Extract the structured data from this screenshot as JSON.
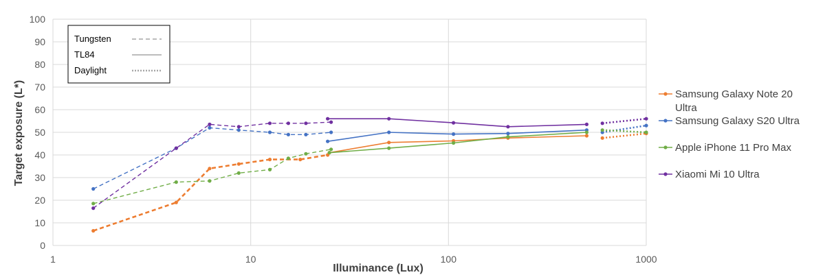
{
  "chart_data": {
    "type": "line",
    "title": "",
    "xlabel": "Illuminance (Lux)",
    "ylabel": "Target exposure (L*)",
    "xscale": "log",
    "xlim": [
      1,
      1000
    ],
    "ylim": [
      0,
      100
    ],
    "xticks": [
      "1",
      "10",
      "100",
      "1000"
    ],
    "yticks": [
      "0",
      "10",
      "20",
      "30",
      "40",
      "50",
      "60",
      "70",
      "80",
      "90",
      "100"
    ],
    "grid": true,
    "line_style_legend": {
      "placement": "top-left",
      "entries": [
        {
          "label": "Tungsten",
          "style": "dashed"
        },
        {
          "label": "TL84",
          "style": "solid"
        },
        {
          "label": "Daylight",
          "style": "dotted"
        }
      ]
    },
    "legend_placement": "right",
    "series": [
      {
        "name": "Samsung Galaxy Note 20 Ultra",
        "color": "#ED7D31",
        "tungsten": {
          "x": [
            1.6,
            4.2,
            6.2,
            8.7,
            12.5,
            17.8,
            24.5
          ],
          "y": [
            6.5,
            19,
            34,
            36,
            38,
            38,
            40
          ]
        },
        "tl84": {
          "x": [
            25,
            50,
            106,
            200,
            500
          ],
          "y": [
            41,
            45.5,
            46.2,
            47.5,
            48.5
          ]
        },
        "daylight": {
          "x": [
            600,
            1000
          ],
          "y": [
            47.5,
            49.5
          ]
        }
      },
      {
        "name": "Samsung Galaxy S20 Ultra",
        "color": "#4472C4",
        "tungsten": {
          "x": [
            1.6,
            4.2,
            6.2,
            8.7,
            12.5,
            15.5,
            19,
            25.5
          ],
          "y": [
            25,
            43,
            52,
            51,
            50,
            49,
            49,
            50
          ]
        },
        "tl84": {
          "x": [
            24.5,
            50,
            106,
            200,
            500
          ],
          "y": [
            46,
            50,
            49.2,
            49.5,
            51
          ]
        },
        "daylight": {
          "x": [
            600,
            1000
          ],
          "y": [
            50,
            53
          ]
        }
      },
      {
        "name": "Apple iPhone 11 Pro Max",
        "color": "#70AD47",
        "tungsten": {
          "x": [
            1.6,
            4.2,
            6.2,
            8.7,
            12.5,
            15.5,
            19,
            25.5
          ],
          "y": [
            18.5,
            28,
            28.5,
            32,
            33.5,
            38.5,
            40.5,
            42.5
          ]
        },
        "tl84": {
          "x": [
            25,
            50,
            106,
            200,
            500
          ],
          "y": [
            41,
            43,
            45.3,
            48,
            50
          ]
        },
        "daylight": {
          "x": [
            600,
            1000
          ],
          "y": [
            51,
            50
          ]
        }
      },
      {
        "name": "Xiaomi Mi 10 Ultra",
        "color": "#7030A0",
        "tungsten": {
          "x": [
            1.6,
            4.2,
            6.2,
            8.7,
            12.5,
            15.5,
            19,
            25.5
          ],
          "y": [
            16.5,
            43,
            53.5,
            52.5,
            54,
            54,
            54,
            54.5
          ]
        },
        "tl84": {
          "x": [
            24.5,
            50,
            106,
            200,
            500
          ],
          "y": [
            56,
            56,
            54.2,
            52.5,
            53.5
          ]
        },
        "daylight": {
          "x": [
            600,
            1000
          ],
          "y": [
            54,
            56
          ]
        }
      }
    ]
  }
}
